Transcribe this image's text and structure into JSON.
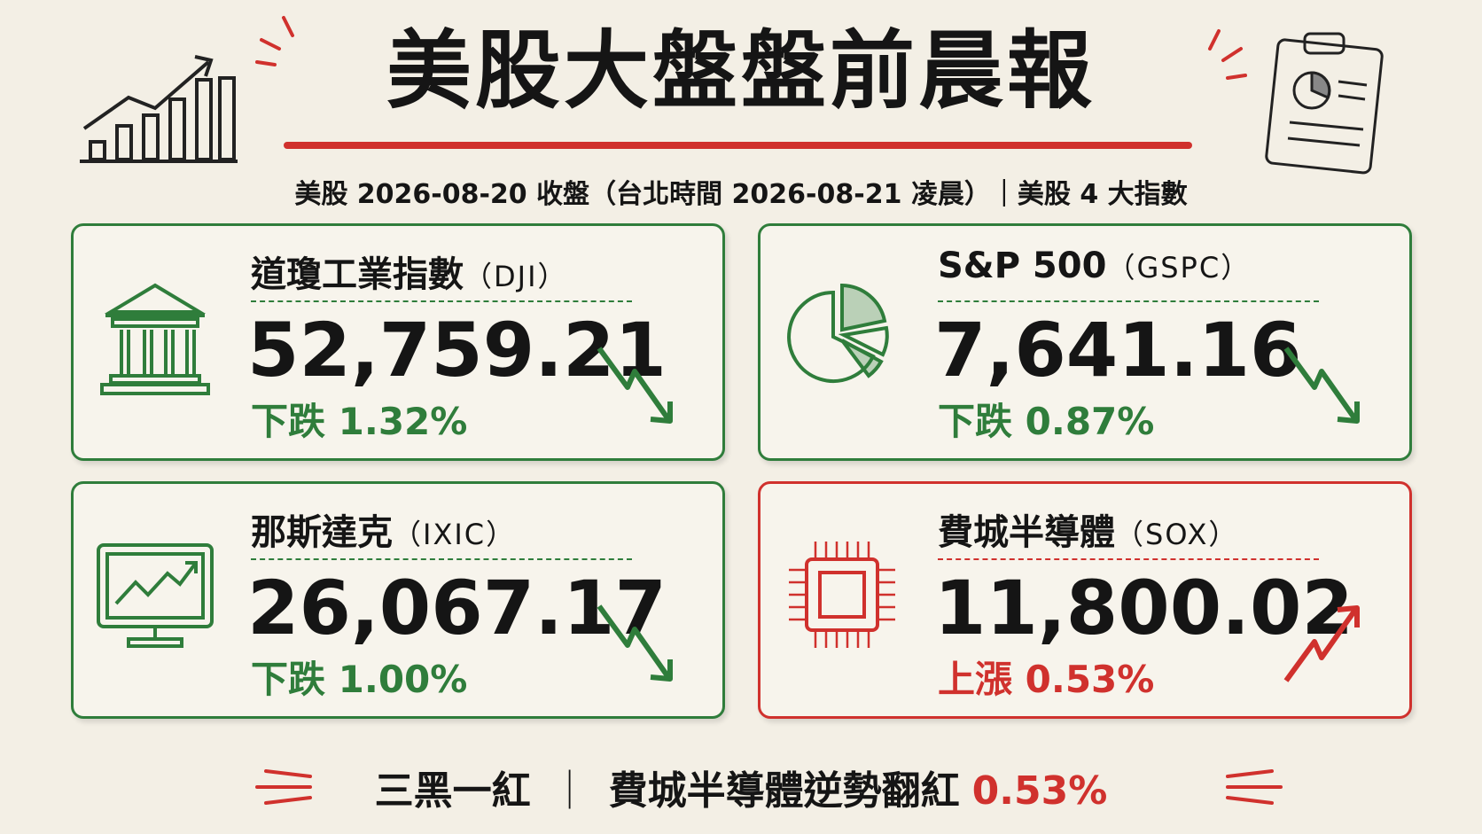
{
  "header": {
    "title": "美股大盤盤前晨報",
    "subtitle": "美股 2026-08-20 收盤（台北時間 2026-08-21 凌晨）｜美股 4 大指數"
  },
  "colors": {
    "up": "#d0312d",
    "down": "#2f7d3b"
  },
  "cards": [
    {
      "name": "道瓊工業指數",
      "code": "（DJI）",
      "value": "52,759.21",
      "change_label": "下跌",
      "change": "1.32%",
      "trend": "down"
    },
    {
      "name": "S&P 500",
      "code": "（GSPC）",
      "value": "7,641.16",
      "change_label": "下跌",
      "change": "0.87%",
      "trend": "down"
    },
    {
      "name": "那斯達克",
      "code": "（IXIC）",
      "value": "26,067.17",
      "change_label": "下跌",
      "change": "1.00%",
      "trend": "down"
    },
    {
      "name": "費城半導體",
      "code": "（SOX）",
      "value": "11,800.02",
      "change_label": "上漲",
      "change": "0.53%",
      "trend": "up"
    }
  ],
  "footer": {
    "summary": "三黑一紅",
    "separator": "｜",
    "note": "費城半導體逆勢翻紅",
    "highlight": "0.53%"
  }
}
